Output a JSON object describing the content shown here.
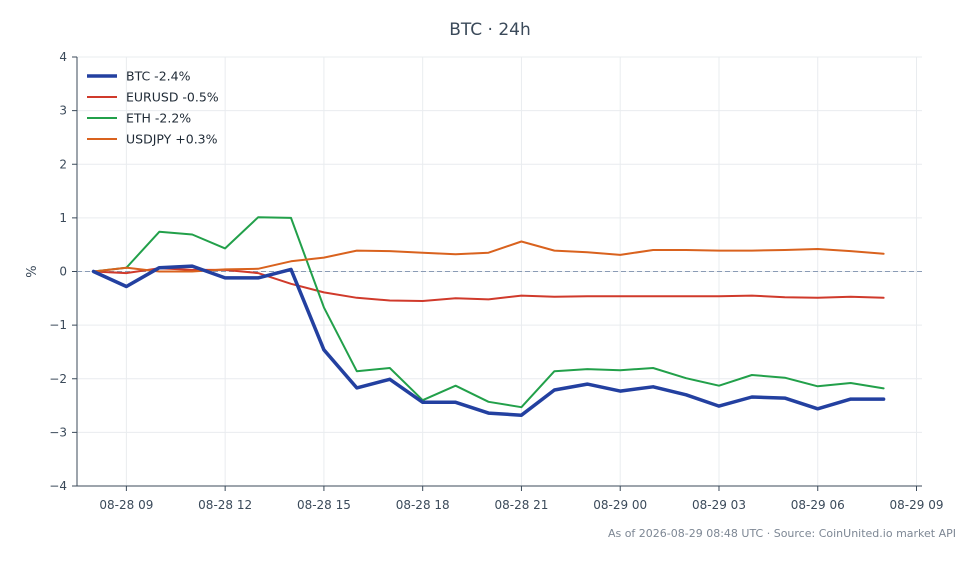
{
  "chart_data": {
    "type": "line",
    "title": "BTC · 24h",
    "ylabel": "%",
    "xlabel": "",
    "ylim": [
      -4,
      4
    ],
    "yticks": [
      -4,
      -3,
      -2,
      -1,
      0,
      1,
      2,
      3,
      4
    ],
    "ytick_labels": [
      "−4",
      "−3",
      "−2",
      "−1",
      "0",
      "1",
      "2",
      "3",
      "4"
    ],
    "xlim": [
      "2026-08-28 07:30",
      "2026-08-29 09:10"
    ],
    "xticks": [
      {
        "t": "2026-08-28 09:00",
        "label": "08-28 09"
      },
      {
        "t": "2026-08-28 12:00",
        "label": "08-28 12"
      },
      {
        "t": "2026-08-28 15:00",
        "label": "08-28 15"
      },
      {
        "t": "2026-08-28 18:00",
        "label": "08-28 18"
      },
      {
        "t": "2026-08-28 21:00",
        "label": "08-28 21"
      },
      {
        "t": "2026-08-29 00:00",
        "label": "08-29 00"
      },
      {
        "t": "2026-08-29 03:00",
        "label": "08-29 03"
      },
      {
        "t": "2026-08-29 06:00",
        "label": "08-29 06"
      },
      {
        "t": "2026-08-29 09:00",
        "label": "08-29 09"
      }
    ],
    "x": [
      "2026-08-28 08:00",
      "2026-08-28 09:00",
      "2026-08-28 10:00",
      "2026-08-28 11:00",
      "2026-08-28 12:00",
      "2026-08-28 13:00",
      "2026-08-28 14:00",
      "2026-08-28 15:00",
      "2026-08-28 16:00",
      "2026-08-28 17:00",
      "2026-08-28 18:00",
      "2026-08-28 19:00",
      "2026-08-28 20:00",
      "2026-08-28 21:00",
      "2026-08-28 22:00",
      "2026-08-28 23:00",
      "2026-08-29 00:00",
      "2026-08-29 01:00",
      "2026-08-29 02:00",
      "2026-08-29 03:00",
      "2026-08-29 04:00",
      "2026-08-29 05:00",
      "2026-08-29 06:00",
      "2026-08-29 07:00",
      "2026-08-29 08:00"
    ],
    "series": [
      {
        "name": "BTC -2.4%",
        "color": "#2340a0",
        "width": 3.5,
        "values": [
          0.0,
          -0.28,
          0.07,
          0.1,
          -0.12,
          -0.12,
          0.04,
          -1.46,
          -2.17,
          -2.01,
          -2.44,
          -2.44,
          -2.64,
          -2.68,
          -2.21,
          -2.1,
          -2.23,
          -2.15,
          -2.3,
          -2.51,
          -2.34,
          -2.36,
          -2.56,
          -2.38,
          -2.38
        ]
      },
      {
        "name": "EURUSD -0.5%",
        "color": "#d03a2b",
        "width": 2,
        "values": [
          0.0,
          -0.03,
          0.06,
          0.03,
          0.03,
          -0.03,
          -0.23,
          -0.39,
          -0.49,
          -0.54,
          -0.55,
          -0.5,
          -0.52,
          -0.45,
          -0.47,
          -0.46,
          -0.46,
          -0.46,
          -0.46,
          -0.46,
          -0.45,
          -0.48,
          -0.49,
          -0.47,
          -0.49
        ]
      },
      {
        "name": "ETH -2.2%",
        "color": "#22a04a",
        "width": 2,
        "values": [
          0.0,
          0.07,
          0.74,
          0.69,
          0.43,
          1.01,
          1.0,
          -0.67,
          -1.86,
          -1.8,
          -2.4,
          -2.13,
          -2.43,
          -2.53,
          -1.86,
          -1.82,
          -1.84,
          -1.8,
          -1.99,
          -2.13,
          -1.93,
          -1.98,
          -2.14,
          -2.08,
          -2.18
        ]
      },
      {
        "name": "USDJPY +0.3%",
        "color": "#d9621e",
        "width": 2,
        "values": [
          0.0,
          0.07,
          0.0,
          0.0,
          0.04,
          0.05,
          0.19,
          0.26,
          0.39,
          0.38,
          0.35,
          0.32,
          0.35,
          0.56,
          0.39,
          0.36,
          0.31,
          0.4,
          0.4,
          0.39,
          0.39,
          0.4,
          0.42,
          0.38,
          0.33
        ]
      }
    ],
    "zero_line": true,
    "grid": true,
    "legend_position": "top-left"
  },
  "footer": "As of 2026-08-29 08:48 UTC · Source: CoinUnited.io market API"
}
